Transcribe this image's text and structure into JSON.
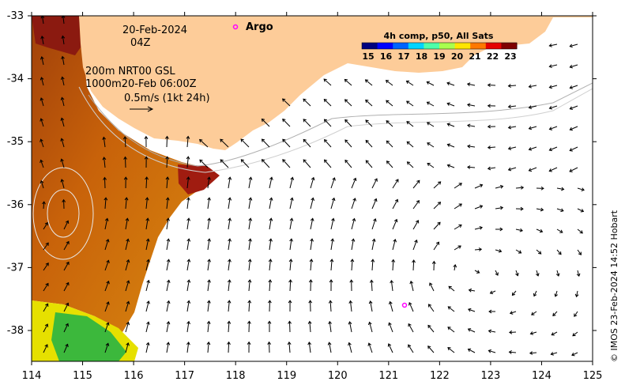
{
  "date": "20-Feb-2024",
  "time": "04Z",
  "contours": {
    "line1": "200m  NRT00 GSL",
    "line2": "1000m20-Feb 06:00Z"
  },
  "vector_scale": "0.5m/s (1kt 24h)",
  "argo_label": "Argo",
  "colorbar": {
    "title": "4h comp, p50, All Sats",
    "ticks": [
      "15",
      "16",
      "17",
      "18",
      "19",
      "20",
      "21",
      "22",
      "23"
    ],
    "colors": [
      "#00007f",
      "#0000ff",
      "#0063ff",
      "#00d4ff",
      "#4effa9",
      "#a9ff4e",
      "#ffe500",
      "#ff7800",
      "#e50000",
      "#7f0000"
    ]
  },
  "x_ticks": [
    "114",
    "115",
    "116",
    "117",
    "118",
    "119",
    "120",
    "121",
    "122",
    "123",
    "124",
    "125"
  ],
  "y_ticks": [
    "-33",
    "-34",
    "-35",
    "-36",
    "-37",
    "-38"
  ],
  "credit": "© IMOS 23-Feb-2024 14:52 Hobart",
  "colors": {
    "land": "#fdcc99",
    "argo": "#ff00ff"
  }
}
